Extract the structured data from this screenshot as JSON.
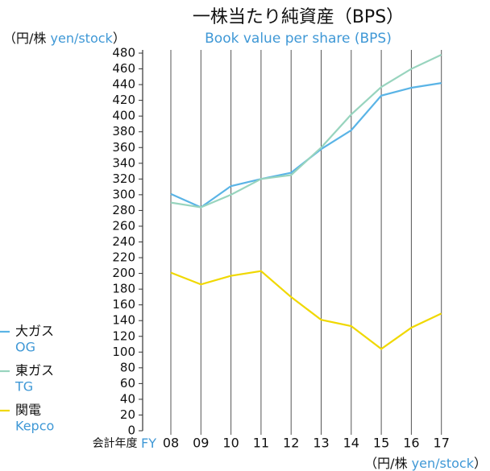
{
  "chart_data": {
    "type": "line",
    "title": "一株当たり純資産（BPS）",
    "subtitle": "Book value per share (BPS)",
    "ylabel": {
      "ja": "（円/株",
      "en": "yen/stock",
      "close": "）"
    },
    "xlabel": {
      "ja": "会計年度",
      "en": "FY"
    },
    "unit_note": {
      "ja": "（円/株",
      "en": "yen/stock",
      "close": "）"
    },
    "categories": [
      "08",
      "09",
      "10",
      "11",
      "12",
      "13",
      "14",
      "15",
      "16",
      "17"
    ],
    "series": [
      {
        "name": "大ガス",
        "name_en": "OG",
        "color": "#5ab4e6",
        "values": [
          301,
          284,
          311,
          320,
          328,
          358,
          382,
          426,
          436,
          442
        ]
      },
      {
        "name": "東ガス",
        "name_en": "TG",
        "color": "#98d4be",
        "values": [
          290,
          284,
          300,
          320,
          325,
          360,
          402,
          437,
          460,
          478
        ]
      },
      {
        "name": "関電",
        "name_en": "Kepco",
        "color": "#f0d800",
        "values": [
          201,
          186,
          197,
          203,
          170,
          141,
          133,
          104,
          131,
          149
        ]
      }
    ],
    "ylim": [
      0,
      480
    ],
    "yticks": [
      0,
      20,
      40,
      60,
      80,
      100,
      120,
      140,
      160,
      180,
      200,
      220,
      240,
      260,
      280,
      300,
      320,
      340,
      360,
      380,
      400,
      420,
      440,
      460,
      480
    ],
    "grid": "x"
  }
}
